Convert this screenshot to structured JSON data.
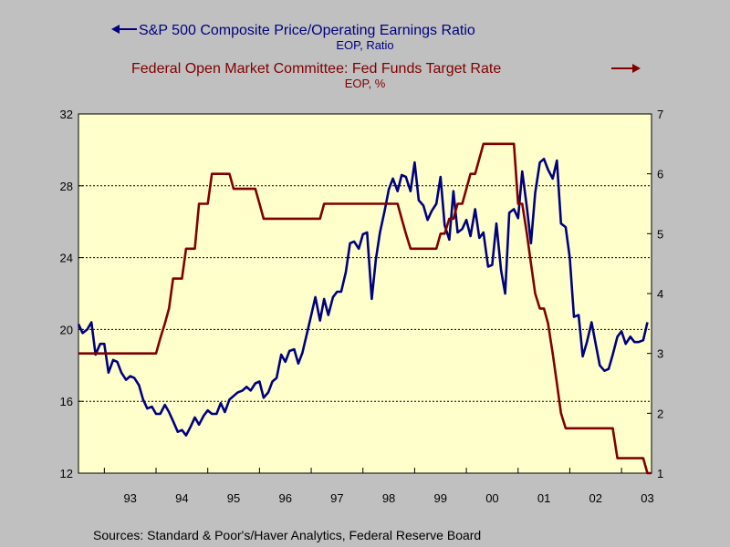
{
  "chart_data": {
    "type": "line",
    "x_range": [
      1992.5,
      2003.58
    ],
    "x_tick_labels": [
      {
        "label": "93",
        "value": 1993
      },
      {
        "label": "94",
        "value": 1994
      },
      {
        "label": "95",
        "value": 1995
      },
      {
        "label": "96",
        "value": 1996
      },
      {
        "label": "97",
        "value": 1997
      },
      {
        "label": "98",
        "value": 1998
      },
      {
        "label": "99",
        "value": 1999
      },
      {
        "label": "00",
        "value": 2000
      },
      {
        "label": "01",
        "value": 2001
      },
      {
        "label": "02",
        "value": 2002
      },
      {
        "label": "03",
        "value": 2003
      }
    ],
    "y_left": {
      "range": [
        12,
        32
      ],
      "ticks": [
        "12",
        "16",
        "20",
        "24",
        "28",
        "32"
      ]
    },
    "y_right": {
      "range": [
        1,
        7
      ],
      "ticks": [
        "1",
        "2",
        "3",
        "4",
        "5",
        "6",
        "7"
      ]
    },
    "grid_lines_left": [
      16,
      20,
      24,
      28
    ],
    "series": [
      {
        "name": "S&P 500 Composite Price/Operating Earnings Ratio",
        "units": "EOP, Ratio",
        "axis": "left",
        "color": "#000080",
        "legend_arrow": "left",
        "points": [
          [
            1992.5,
            20.3
          ],
          [
            1992.58,
            19.8
          ],
          [
            1992.67,
            20.0
          ],
          [
            1992.75,
            20.4
          ],
          [
            1992.83,
            18.6
          ],
          [
            1992.92,
            19.2
          ],
          [
            1993.0,
            19.2
          ],
          [
            1993.08,
            17.6
          ],
          [
            1993.17,
            18.3
          ],
          [
            1993.25,
            18.2
          ],
          [
            1993.33,
            17.6
          ],
          [
            1993.42,
            17.2
          ],
          [
            1993.5,
            17.4
          ],
          [
            1993.58,
            17.3
          ],
          [
            1993.67,
            16.9
          ],
          [
            1993.75,
            16.1
          ],
          [
            1993.83,
            15.6
          ],
          [
            1993.92,
            15.7
          ],
          [
            1994.0,
            15.3
          ],
          [
            1994.08,
            15.3
          ],
          [
            1994.17,
            15.8
          ],
          [
            1994.25,
            15.4
          ],
          [
            1994.33,
            14.9
          ],
          [
            1994.42,
            14.3
          ],
          [
            1994.5,
            14.4
          ],
          [
            1994.58,
            14.1
          ],
          [
            1994.67,
            14.6
          ],
          [
            1994.75,
            15.1
          ],
          [
            1994.83,
            14.7
          ],
          [
            1994.92,
            15.2
          ],
          [
            1995.0,
            15.5
          ],
          [
            1995.08,
            15.3
          ],
          [
            1995.17,
            15.3
          ],
          [
            1995.25,
            15.9
          ],
          [
            1995.33,
            15.4
          ],
          [
            1995.42,
            16.1
          ],
          [
            1995.5,
            16.3
          ],
          [
            1995.58,
            16.5
          ],
          [
            1995.67,
            16.6
          ],
          [
            1995.75,
            16.8
          ],
          [
            1995.83,
            16.6
          ],
          [
            1995.92,
            17.0
          ],
          [
            1996.0,
            17.1
          ],
          [
            1996.08,
            16.2
          ],
          [
            1996.17,
            16.5
          ],
          [
            1996.25,
            17.1
          ],
          [
            1996.33,
            17.3
          ],
          [
            1996.42,
            18.6
          ],
          [
            1996.5,
            18.2
          ],
          [
            1996.58,
            18.8
          ],
          [
            1996.67,
            18.9
          ],
          [
            1996.75,
            18.1
          ],
          [
            1996.83,
            18.7
          ],
          [
            1996.92,
            19.8
          ],
          [
            1997.0,
            20.8
          ],
          [
            1997.08,
            21.8
          ],
          [
            1997.17,
            20.5
          ],
          [
            1997.25,
            21.7
          ],
          [
            1997.33,
            20.8
          ],
          [
            1997.42,
            21.8
          ],
          [
            1997.5,
            22.1
          ],
          [
            1997.58,
            22.1
          ],
          [
            1997.67,
            23.2
          ],
          [
            1997.75,
            24.8
          ],
          [
            1997.83,
            24.9
          ],
          [
            1997.92,
            24.5
          ],
          [
            1998.0,
            25.3
          ],
          [
            1998.08,
            25.4
          ],
          [
            1998.17,
            21.7
          ],
          [
            1998.25,
            23.9
          ],
          [
            1998.33,
            25.4
          ],
          [
            1998.42,
            26.6
          ],
          [
            1998.5,
            27.8
          ],
          [
            1998.58,
            28.4
          ],
          [
            1998.67,
            27.7
          ],
          [
            1998.75,
            28.6
          ],
          [
            1998.83,
            28.5
          ],
          [
            1998.92,
            27.7
          ],
          [
            1999.0,
            29.3
          ],
          [
            1999.08,
            27.2
          ],
          [
            1999.17,
            26.9
          ],
          [
            1999.25,
            26.1
          ],
          [
            1999.33,
            26.6
          ],
          [
            1999.42,
            27.0
          ],
          [
            1999.5,
            28.5
          ],
          [
            1999.58,
            25.8
          ],
          [
            1999.67,
            25.0
          ],
          [
            1999.75,
            27.7
          ],
          [
            1999.83,
            25.4
          ],
          [
            1999.92,
            25.6
          ],
          [
            2000.0,
            26.1
          ],
          [
            2000.08,
            25.2
          ],
          [
            2000.17,
            26.7
          ],
          [
            2000.25,
            25.1
          ],
          [
            2000.33,
            25.4
          ],
          [
            2000.42,
            23.5
          ],
          [
            2000.5,
            23.6
          ],
          [
            2000.58,
            25.9
          ],
          [
            2000.67,
            23.3
          ],
          [
            2000.75,
            22.0
          ],
          [
            2000.83,
            26.5
          ],
          [
            2000.92,
            26.7
          ],
          [
            2001.0,
            26.2
          ],
          [
            2001.08,
            28.8
          ],
          [
            2001.17,
            26.8
          ],
          [
            2001.25,
            24.8
          ],
          [
            2001.33,
            27.6
          ],
          [
            2001.42,
            29.3
          ],
          [
            2001.5,
            29.5
          ],
          [
            2001.58,
            28.9
          ],
          [
            2001.67,
            28.4
          ],
          [
            2001.75,
            29.4
          ],
          [
            2001.83,
            25.9
          ],
          [
            2001.92,
            25.7
          ],
          [
            2002.0,
            24.0
          ],
          [
            2002.08,
            20.7
          ],
          [
            2002.17,
            20.8
          ],
          [
            2002.25,
            18.5
          ],
          [
            2002.33,
            19.3
          ],
          [
            2002.42,
            20.4
          ],
          [
            2002.5,
            19.2
          ],
          [
            2002.58,
            18.0
          ],
          [
            2002.67,
            17.7
          ],
          [
            2002.75,
            17.8
          ],
          [
            2002.83,
            18.6
          ],
          [
            2002.92,
            19.6
          ],
          [
            2003.0,
            19.9
          ],
          [
            2003.08,
            19.2
          ],
          [
            2003.17,
            19.6
          ],
          [
            2003.25,
            19.3
          ],
          [
            2003.33,
            19.3
          ],
          [
            2003.42,
            19.4
          ],
          [
            2003.5,
            20.4
          ]
        ]
      },
      {
        "name": "Federal Open Market Committee: Fed Funds Target Rate",
        "units": "EOP, %",
        "axis": "right",
        "color": "#800000",
        "legend_arrow": "right",
        "points": [
          [
            1992.5,
            3.0
          ],
          [
            1993.0,
            3.0
          ],
          [
            1993.5,
            3.0
          ],
          [
            1994.0,
            3.0
          ],
          [
            1994.08,
            3.25
          ],
          [
            1994.17,
            3.5
          ],
          [
            1994.25,
            3.75
          ],
          [
            1994.33,
            4.25
          ],
          [
            1994.5,
            4.25
          ],
          [
            1994.58,
            4.75
          ],
          [
            1994.75,
            4.75
          ],
          [
            1994.83,
            5.5
          ],
          [
            1994.92,
            5.5
          ],
          [
            1995.0,
            5.5
          ],
          [
            1995.08,
            6.0
          ],
          [
            1995.42,
            6.0
          ],
          [
            1995.5,
            5.75
          ],
          [
            1995.92,
            5.75
          ],
          [
            1996.0,
            5.5
          ],
          [
            1996.08,
            5.25
          ],
          [
            1996.17,
            5.25
          ],
          [
            1996.83,
            5.25
          ],
          [
            1997.17,
            5.25
          ],
          [
            1997.25,
            5.5
          ],
          [
            1997.92,
            5.5
          ],
          [
            1998.0,
            5.5
          ],
          [
            1998.67,
            5.5
          ],
          [
            1998.75,
            5.25
          ],
          [
            1998.83,
            5.0
          ],
          [
            1998.92,
            4.75
          ],
          [
            1999.0,
            4.75
          ],
          [
            1999.42,
            4.75
          ],
          [
            1999.5,
            5.0
          ],
          [
            1999.58,
            5.0
          ],
          [
            1999.67,
            5.25
          ],
          [
            1999.75,
            5.25
          ],
          [
            1999.83,
            5.5
          ],
          [
            1999.92,
            5.5
          ],
          [
            2000.0,
            5.75
          ],
          [
            2000.08,
            6.0
          ],
          [
            2000.17,
            6.0
          ],
          [
            2000.33,
            6.5
          ],
          [
            2000.92,
            6.5
          ],
          [
            2001.0,
            5.5
          ],
          [
            2001.08,
            5.5
          ],
          [
            2001.17,
            5.0
          ],
          [
            2001.25,
            4.5
          ],
          [
            2001.33,
            4.0
          ],
          [
            2001.42,
            3.75
          ],
          [
            2001.5,
            3.75
          ],
          [
            2001.58,
            3.5
          ],
          [
            2001.67,
            3.0
          ],
          [
            2001.75,
            2.5
          ],
          [
            2001.83,
            2.0
          ],
          [
            2001.92,
            1.75
          ],
          [
            2002.0,
            1.75
          ],
          [
            2002.83,
            1.75
          ],
          [
            2002.92,
            1.25
          ],
          [
            2003.0,
            1.25
          ],
          [
            2003.42,
            1.25
          ],
          [
            2003.5,
            1.0
          ],
          [
            2003.58,
            1.0
          ]
        ]
      }
    ]
  },
  "sources": "Sources:  Standard & Poor's/Haver Analytics, Federal Reserve Board"
}
